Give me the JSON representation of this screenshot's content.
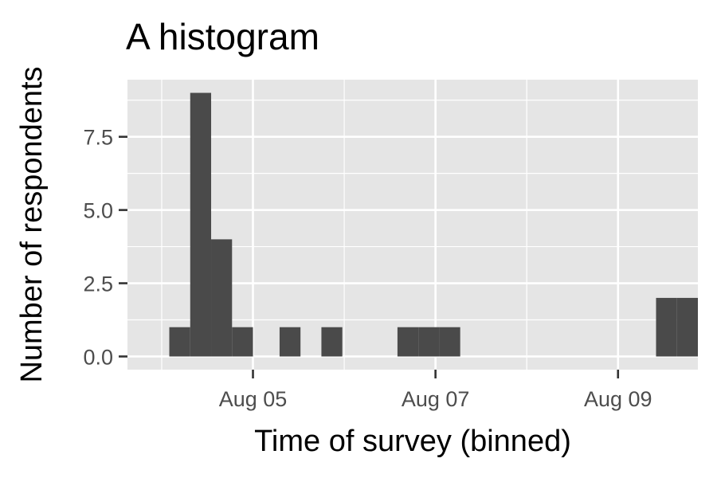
{
  "chart_data": {
    "type": "bar",
    "title": "A histogram",
    "xlabel": "Time of survey (binned)",
    "ylabel": "Number of respondents",
    "x_axis": {
      "type": "date",
      "range": [
        "2022-08-03T15:00",
        "2022-08-09T21:00"
      ],
      "ticks": [
        {
          "value": "2022-08-05",
          "label": "Aug 05"
        },
        {
          "value": "2022-08-07",
          "label": "Aug 07"
        },
        {
          "value": "2022-08-09",
          "label": "Aug 09"
        }
      ]
    },
    "y_axis": {
      "ylim": [
        -0.45,
        9.45
      ],
      "ticks": [
        {
          "value": 0,
          "label": "0.0"
        },
        {
          "value": 2.5,
          "label": "2.5"
        },
        {
          "value": 5,
          "label": "5.0"
        },
        {
          "value": 7.5,
          "label": "7.5"
        }
      ]
    },
    "grid": true,
    "legend": "none",
    "bins": [
      {
        "start": "2022-08-04T02:00",
        "end": "2022-08-04T07:30",
        "count": 1
      },
      {
        "start": "2022-08-04T07:30",
        "end": "2022-08-04T13:00",
        "count": 9
      },
      {
        "start": "2022-08-04T13:00",
        "end": "2022-08-04T18:30",
        "count": 4
      },
      {
        "start": "2022-08-04T18:30",
        "end": "2022-08-05T00:00",
        "count": 1
      },
      {
        "start": "2022-08-05T07:00",
        "end": "2022-08-05T12:30",
        "count": 1
      },
      {
        "start": "2022-08-05T18:00",
        "end": "2022-08-05T23:30",
        "count": 1
      },
      {
        "start": "2022-08-06T14:00",
        "end": "2022-08-06T19:30",
        "count": 1
      },
      {
        "start": "2022-08-06T19:30",
        "end": "2022-08-07T01:00",
        "count": 1
      },
      {
        "start": "2022-08-07T01:00",
        "end": "2022-08-07T06:30",
        "count": 1
      },
      {
        "start": "2022-08-09T10:00",
        "end": "2022-08-09T15:30",
        "count": 2
      },
      {
        "start": "2022-08-09T15:30",
        "end": "2022-08-09T21:00",
        "count": 2
      }
    ],
    "colors": {
      "bar": "#4a4a4a",
      "panel": "#e5e5e5",
      "grid": "#ffffff",
      "tick_label": "#4d4d4d",
      "tick_mark": "#333333"
    }
  }
}
